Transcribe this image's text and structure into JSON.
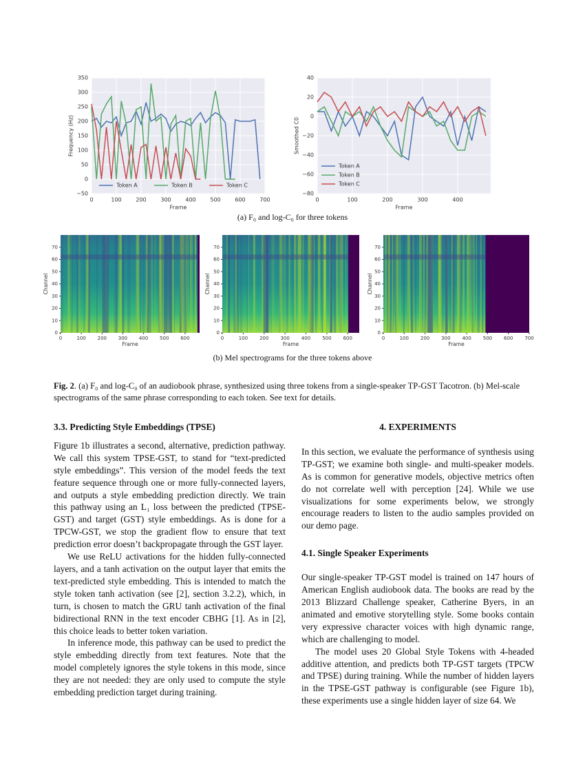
{
  "figure": {
    "charts": [
      {
        "type": "line",
        "xlabel": "Frame",
        "ylabel": "Frequency (Hz)",
        "legend": "lower center",
        "xlim": [
          0,
          700
        ],
        "ylim": [
          -50,
          350
        ],
        "xticks": [
          0,
          100,
          200,
          300,
          400,
          500,
          600,
          700
        ],
        "yticks": [
          {
            "value": -50,
            "label": "−50"
          },
          0,
          50,
          100,
          150,
          200,
          250,
          300,
          350
        ],
        "x": [
          0,
          20,
          40,
          60,
          80,
          100,
          120,
          140,
          160,
          180,
          200,
          220,
          240,
          260,
          280,
          300,
          320,
          340,
          360,
          380,
          400,
          420,
          440,
          460,
          480,
          500,
          520,
          540,
          560,
          580,
          600,
          620,
          640,
          660,
          680,
          700
        ],
        "series": [
          {
            "name": "Token A",
            "color": "#4c72b0",
            "values": [
              200,
              210,
              180,
              200,
              195,
              215,
              150,
              195,
              200,
              235,
              190,
              265,
              200,
              210,
              225,
              210,
              165,
              190,
              200,
              195,
              185,
              210,
              230,
              195,
              215,
              230,
              220,
              195,
              0,
              205,
              200,
              200,
              200,
              205,
              0,
              null
            ]
          },
          {
            "name": "Token B",
            "color": "#55a868",
            "values": [
              250,
              0,
              225,
              260,
              285,
              0,
              270,
              190,
              0,
              240,
              250,
              0,
              330,
              200,
              215,
              0,
              190,
              220,
              0,
              200,
              210,
              0,
              195,
              0,
              210,
              305,
              210,
              0,
              0,
              0,
              null,
              null,
              null,
              null,
              null,
              null
            ]
          },
          {
            "name": "Token C",
            "color": "#c44e52",
            "values": [
              260,
              170,
              0,
              180,
              0,
              200,
              100,
              0,
              120,
              0,
              110,
              120,
              0,
              115,
              0,
              110,
              0,
              90,
              0,
              105,
              80,
              0,
              0,
              null,
              null,
              null,
              null,
              null,
              null,
              null,
              null,
              null,
              null,
              null,
              null,
              null
            ]
          }
        ]
      },
      {
        "type": "line",
        "xlabel": "Frame",
        "ylabel": "Smoothed C0",
        "legend": "lower left",
        "xlim": [
          0,
          494
        ],
        "ylim": [
          -80,
          40
        ],
        "xticks": [
          0,
          100,
          200,
          300,
          400
        ],
        "yticks": [
          {
            "value": -80,
            "label": "−80"
          },
          {
            "value": -60,
            "label": "−60"
          },
          {
            "value": -40,
            "label": "−40"
          },
          {
            "value": -20,
            "label": "−20"
          },
          0,
          20,
          40
        ],
        "x": [
          0,
          20,
          40,
          60,
          80,
          100,
          120,
          140,
          160,
          180,
          200,
          220,
          240,
          260,
          280,
          300,
          320,
          340,
          360,
          380,
          400,
          420,
          440,
          460,
          480
        ],
        "series": [
          {
            "name": "Token A",
            "color": "#4c72b0",
            "values": [
              5,
              5,
              -15,
              5,
              -10,
              0,
              -20,
              5,
              0,
              -10,
              -20,
              -5,
              -40,
              -45,
              10,
              20,
              0,
              -5,
              -10,
              5,
              -30,
              0,
              -25,
              10,
              5
            ]
          },
          {
            "name": "Token B",
            "color": "#55a868",
            "values": [
              5,
              10,
              -5,
              -20,
              5,
              0,
              5,
              -5,
              10,
              -10,
              -25,
              -35,
              -42,
              10,
              5,
              0,
              5,
              -10,
              -5,
              -25,
              -35,
              -35,
              0,
              5,
              0
            ]
          },
          {
            "name": "Token C",
            "color": "#c44e52",
            "values": [
              15,
              25,
              20,
              5,
              15,
              0,
              10,
              -10,
              5,
              10,
              0,
              5,
              -5,
              15,
              5,
              0,
              10,
              5,
              15,
              0,
              10,
              -5,
              5,
              10,
              -20
            ]
          }
        ]
      }
    ],
    "caption_a": "(a) F₀ and log-C₀ for three tokens",
    "spectrograms": [
      {
        "type": "heatmap",
        "xlabel": "Frame",
        "ylabel": "Channel",
        "xlim": [
          0,
          670
        ],
        "ylim": [
          0,
          80
        ],
        "xticks": [
          0,
          100,
          200,
          300,
          400,
          500,
          600
        ],
        "yticks": [
          0,
          10,
          20,
          30,
          40,
          50,
          60,
          70
        ]
      },
      {
        "type": "heatmap",
        "xlabel": "Frame",
        "ylabel": "Channel",
        "xlim": [
          0,
          655
        ],
        "ylim": [
          0,
          80
        ],
        "xticks": [
          0,
          100,
          200,
          300,
          400,
          500,
          600
        ],
        "yticks": [
          0,
          10,
          20,
          30,
          40,
          50,
          60,
          70
        ]
      },
      {
        "type": "heatmap",
        "xlabel": "Frame",
        "ylabel": "Channel",
        "xlim": [
          0,
          700
        ],
        "ylim": [
          0,
          80
        ],
        "xticks": [
          0,
          100,
          200,
          300,
          400,
          500,
          600,
          700
        ],
        "yticks": [
          0,
          10,
          20,
          30,
          40,
          50,
          60,
          70
        ]
      }
    ],
    "caption_b": "(b) Mel spectrograms for the three tokens above",
    "caption": {
      "label": "Fig. 2",
      "text": ". (a) F₀ and log-C₀ of an audiobook phrase, synthesized using three tokens from a single-speaker TP-GST Tacotron. (b) Mel-scale spectrograms of the same phrase corresponding to each token. See text for details."
    }
  },
  "left_column": {
    "heading": "3.3. Predicting Style Embeddings (TPSE)",
    "paragraphs": [
      "Figure 1b illustrates a second, alternative, prediction pathway. We call this system TPSE-GST, to stand for “text-predicted style embeddings”. This version of the model feeds the text feature sequence through one or more fully-connected layers, and outputs a style embedding prediction directly. We train this pathway using an L₁ loss between the predicted (TPSE-GST) and target (GST) style embeddings. As is done for a TPCW-GST, we stop the gradient flow to ensure that text prediction error doesn’t backpropagate through the GST layer.",
      "We use ReLU activations for the hidden fully-connected layers, and a tanh activation on the output layer that emits the text-predicted style embedding. This is intended to match the style token tanh activation (see [2], section 3.2.2), which, in turn, is chosen to match the GRU tanh activation of the final bidirectional RNN in the text encoder CBHG [1]. As in [2], this choice leads to better token variation.",
      "In inference mode, this pathway can be used to predict the style embedding directly from text features. Note that the model completely ignores the style tokens in this mode, since they are not needed: they are only used to compute the style embedding prediction target during training."
    ]
  },
  "right_column": {
    "heading": "4. EXPERIMENTS",
    "intro": "In this section, we evaluate the performance of synthesis using TP-GST; we examine both single- and multi-speaker models. As is common for generative models, objective metrics often do not correlate well with perception [24]. While we use visualizations for some experiments below, we strongly encourage readers to listen to the audio samples provided on our demo page.",
    "subheading": "4.1. Single Speaker Experiments",
    "paragraphs": [
      "Our single-speaker TP-GST model is trained on 147 hours of American English audiobook data. The books are read by the 2013 Blizzard Challenge speaker, Catherine Byers, in an animated and emotive storytelling style. Some books contain very expressive character voices with high dynamic range, which are challenging to model.",
      "The model uses 20 Global Style Tokens with 4-headed additive attention, and predicts both TP-GST targets (TPCW and TPSE) during training. While the number of hidden layers in the TPSE-GST pathway is configurable (see Figure 1b), these experiments use a single hidden layer of size 64. We"
    ]
  }
}
